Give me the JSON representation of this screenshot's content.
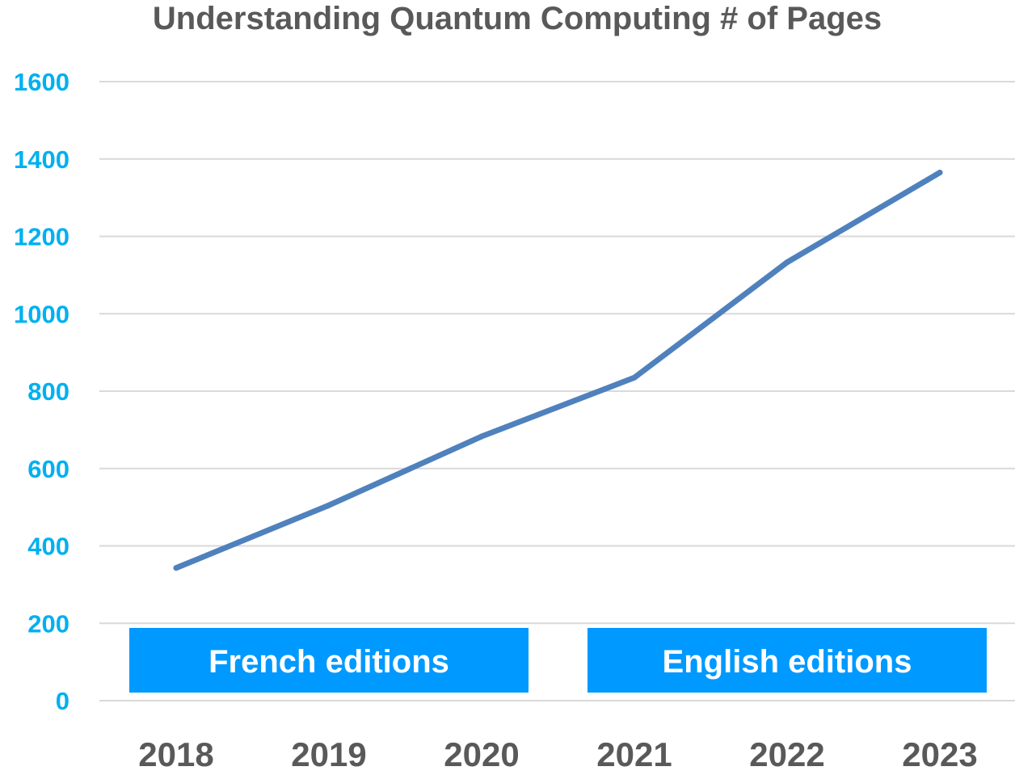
{
  "chart_data": {
    "type": "line",
    "title": "Understanding Quantum Computing # of Pages",
    "xlabel": "",
    "ylabel": "",
    "categories": [
      "2018",
      "2019",
      "2020",
      "2021",
      "2022",
      "2023"
    ],
    "series": [
      {
        "values": [
          343,
          505,
          683,
          835,
          1133,
          1365
        ]
      }
    ],
    "ylim": [
      0,
      1600
    ],
    "yticks": [
      "0",
      "200",
      "400",
      "600",
      "800",
      "1000",
      "1200",
      "1400",
      "1600"
    ],
    "grid": true,
    "annotations": [
      {
        "text": "French editions",
        "categories": [
          "2018",
          "2019",
          "2020"
        ]
      },
      {
        "text": "English editions",
        "categories": [
          "2021",
          "2022",
          "2023"
        ]
      }
    ]
  },
  "colors": {
    "line": "#4f81bd",
    "band": "#0099ff",
    "ytick": "#00b0f0",
    "xtick": "#595959",
    "title": "#595959",
    "grid": "#d9d9d9"
  }
}
